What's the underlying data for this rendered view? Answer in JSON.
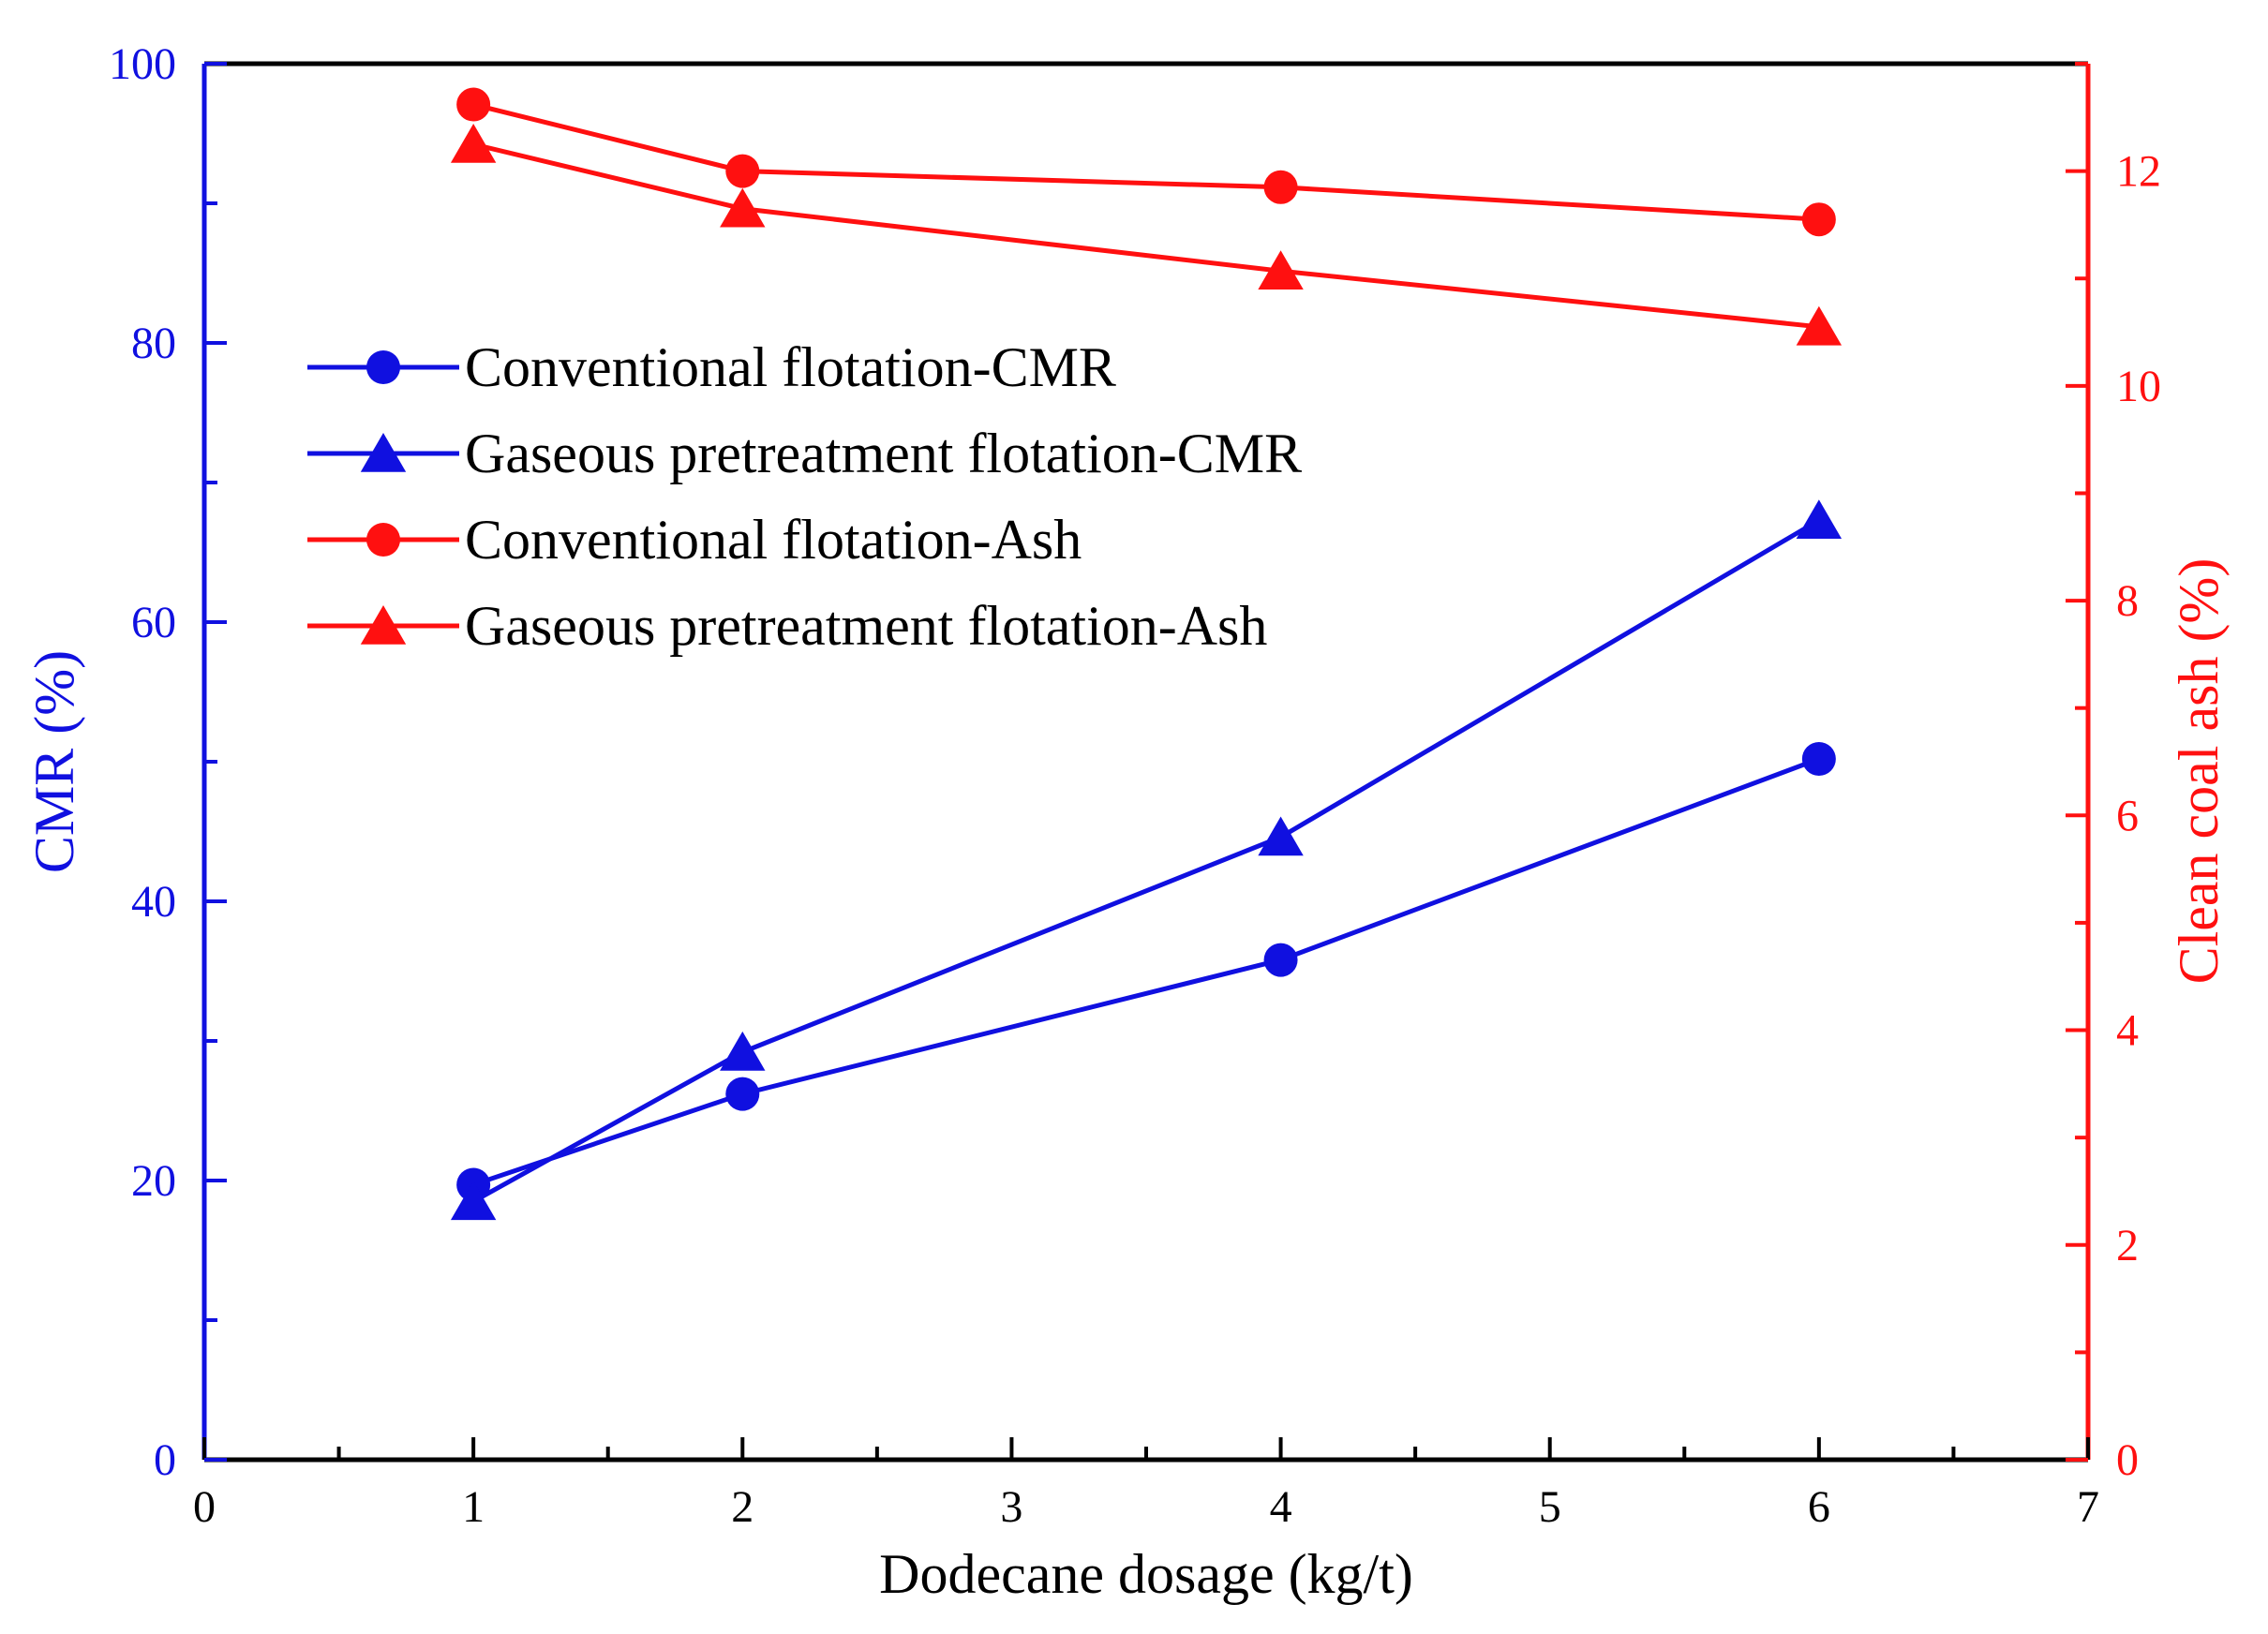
{
  "chart_data": {
    "type": "line",
    "x_axis": {
      "label": "Dodecane dosage (kg/t)",
      "range": [
        0,
        7
      ],
      "ticks": [
        "0",
        "1",
        "2",
        "3",
        "4",
        "5",
        "6",
        "7"
      ],
      "color": "#000000"
    },
    "y_axis_left": {
      "label": "CMR (%)",
      "range": [
        0,
        100
      ],
      "ticks": [
        "0",
        "20",
        "40",
        "60",
        "80",
        "100"
      ],
      "color": "#1010e0"
    },
    "y_axis_right": {
      "label": "Clean coal ash  (%)",
      "range": [
        0,
        13
      ],
      "ticks": [
        "0",
        "2",
        "4",
        "6",
        "8",
        "10",
        "12"
      ],
      "color": "#ff1010"
    },
    "legend_position": "upper-left",
    "series": [
      {
        "name": "Conventional flotation-CMR",
        "axis": "left",
        "marker": "circle",
        "color": "#1010e0",
        "x": [
          1,
          2,
          4,
          6
        ],
        "y": [
          19.7,
          26.2,
          35.8,
          50.2
        ]
      },
      {
        "name": "Gaseous pretreatment flotation-CMR",
        "axis": "left",
        "marker": "triangle",
        "color": "#1010e0",
        "x": [
          1,
          2,
          4,
          6
        ],
        "y": [
          18.5,
          29.2,
          44.6,
          67.3
        ]
      },
      {
        "name": "Conventional flotation-Ash",
        "axis": "right",
        "marker": "circle",
        "color": "#ff1010",
        "x": [
          1,
          2,
          4,
          6
        ],
        "y": [
          12.62,
          12.0,
          11.85,
          11.55
        ]
      },
      {
        "name": "Gaseous pretreatment flotation-Ash",
        "axis": "right",
        "marker": "triangle",
        "color": "#ff1010",
        "x": [
          1,
          2,
          4,
          6
        ],
        "y": [
          12.25,
          11.65,
          11.07,
          10.55
        ]
      }
    ]
  }
}
